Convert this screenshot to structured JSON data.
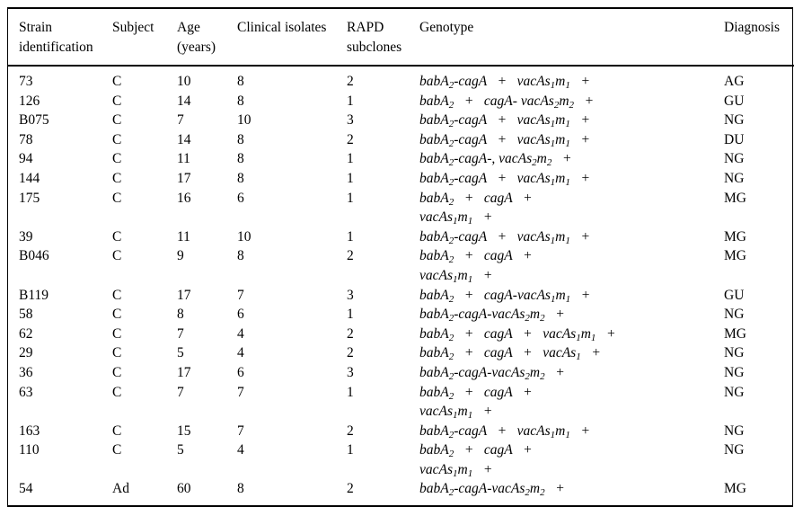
{
  "table": {
    "columns": [
      {
        "id": "strain",
        "label": "Strain\nidentification"
      },
      {
        "id": "subject",
        "label": "Subject"
      },
      {
        "id": "age",
        "label": "Age\n(years)"
      },
      {
        "id": "isolates",
        "label": "Clinical isolates"
      },
      {
        "id": "subclones",
        "label": "RAPD\nsubclones"
      },
      {
        "id": "genotype",
        "label": "Genotype"
      },
      {
        "id": "diagnosis",
        "label": "Diagnosis"
      }
    ],
    "rows": [
      {
        "strain": "73",
        "subject": "C",
        "age": "10",
        "isolates": "8",
        "subclones": "2",
        "genotype": [
          "babA{2}-cagA   +   vacAs{1}m{1}   +"
        ],
        "diagnosis": "AG"
      },
      {
        "strain": "126",
        "subject": "C",
        "age": "14",
        "isolates": "8",
        "subclones": "1",
        "genotype": [
          "babA{2}   +   cagA- vacAs{2}m{2}   +"
        ],
        "diagnosis": "GU"
      },
      {
        "strain": "B075",
        "subject": "C",
        "age": "7",
        "isolates": "10",
        "subclones": "3",
        "genotype": [
          "babA{2}-cagA   +   vacAs{1}m{1}   +"
        ],
        "diagnosis": "NG"
      },
      {
        "strain": "78",
        "subject": "C",
        "age": "14",
        "isolates": "8",
        "subclones": "2",
        "genotype": [
          "babA{2}-cagA   +   vacAs{1}m{1}   +"
        ],
        "diagnosis": "DU"
      },
      {
        "strain": "94",
        "subject": "C",
        "age": "11",
        "isolates": "8",
        "subclones": "1",
        "genotype": [
          "babA{2}-cagA-, vacAs{2}m{2}   +"
        ],
        "diagnosis": "NG"
      },
      {
        "strain": "144",
        "subject": "C",
        "age": "17",
        "isolates": "8",
        "subclones": "1",
        "genotype": [
          "babA{2}-cagA   +   vacAs{1}m{1}   +"
        ],
        "diagnosis": "NG"
      },
      {
        "strain": "175",
        "subject": "C",
        "age": "16",
        "isolates": "6",
        "subclones": "1",
        "genotype": [
          "babA{2}   +   cagA   +",
          "vacAs{1}m{1}   +"
        ],
        "diagnosis": "MG"
      },
      {
        "strain": "39",
        "subject": "C",
        "age": "11",
        "isolates": "10",
        "subclones": "1",
        "genotype": [
          "babA{2}-cagA   +   vacAs{1}m{1}   +"
        ],
        "diagnosis": "MG"
      },
      {
        "strain": "B046",
        "subject": "C",
        "age": "9",
        "isolates": "8",
        "subclones": "2",
        "genotype": [
          "babA{2}   +   cagA   +",
          "vacAs{1}m{1}   +"
        ],
        "diagnosis": "MG"
      },
      {
        "strain": "B119",
        "subject": "C",
        "age": "17",
        "isolates": "7",
        "subclones": "3",
        "genotype": [
          "babA{2}   +   cagA-vacAs{1}m{1}   +"
        ],
        "diagnosis": "GU"
      },
      {
        "strain": "58",
        "subject": "C",
        "age": "8",
        "isolates": "6",
        "subclones": "1",
        "genotype": [
          "babA{2}-cagA-vacAs{2}m{2}   +"
        ],
        "diagnosis": "NG"
      },
      {
        "strain": "62",
        "subject": "C",
        "age": "7",
        "isolates": "4",
        "subclones": "2",
        "genotype": [
          "babA{2}   +   cagA   +   vacAs{1}m{1}   +"
        ],
        "diagnosis": "MG"
      },
      {
        "strain": "29",
        "subject": "C",
        "age": "5",
        "isolates": "4",
        "subclones": "2",
        "genotype": [
          "babA{2}   +   cagA   +   vacAs{1}   +"
        ],
        "diagnosis": "NG"
      },
      {
        "strain": "36",
        "subject": "C",
        "age": "17",
        "isolates": "6",
        "subclones": "3",
        "genotype": [
          "babA{2}-cagA-vacAs{2}m{2}   +"
        ],
        "diagnosis": "NG"
      },
      {
        "strain": "63",
        "subject": "C",
        "age": "7",
        "isolates": "7",
        "subclones": "1",
        "genotype": [
          "babA{2}   +   cagA   +",
          "vacAs{1}m{1}   +"
        ],
        "diagnosis": "NG"
      },
      {
        "strain": "163",
        "subject": "C",
        "age": "15",
        "isolates": "7",
        "subclones": "2",
        "genotype": [
          "babA{2}-cagA   +   vacAs{1}m{1}   +"
        ],
        "diagnosis": "NG"
      },
      {
        "strain": "110",
        "subject": "C",
        "age": "5",
        "isolates": "4",
        "subclones": "1",
        "genotype": [
          "babA{2}   +   cagA   +",
          "vacAs{1}m{1}   +"
        ],
        "diagnosis": "NG"
      },
      {
        "strain": "54",
        "subject": "Ad",
        "age": "60",
        "isolates": "8",
        "subclones": "2",
        "genotype": [
          "babA{2}-cagA-vacAs{2}m{2}   +"
        ],
        "diagnosis": "MG"
      }
    ]
  }
}
